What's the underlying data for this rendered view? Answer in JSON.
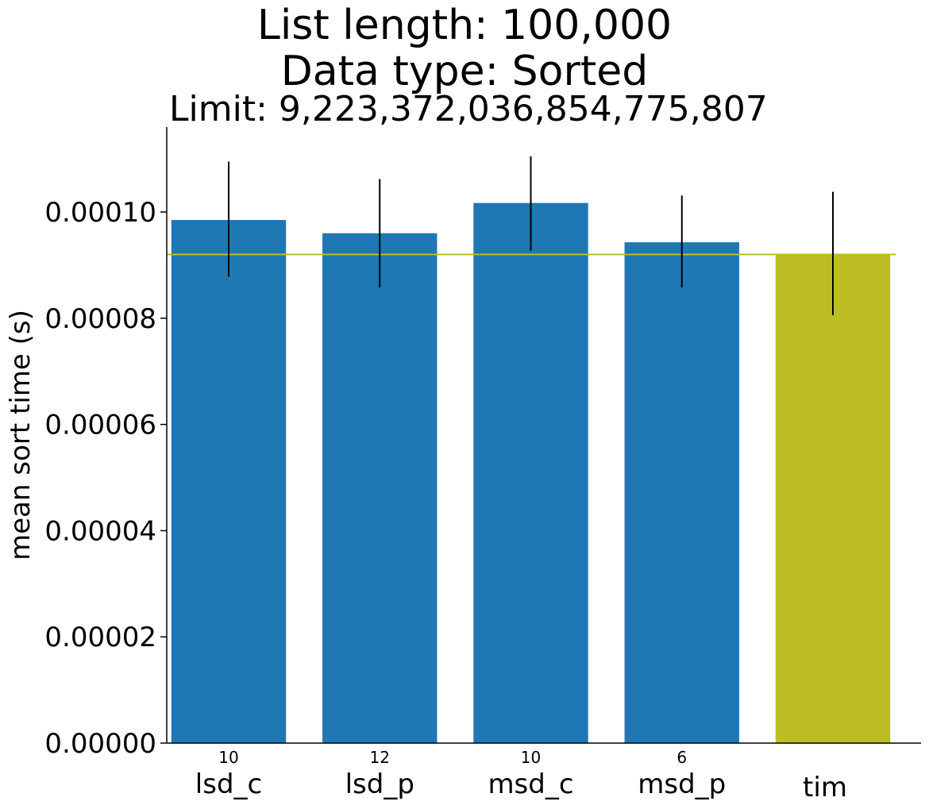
{
  "chart_data": {
    "type": "bar",
    "title_lines": [
      "List length: 100,000",
      "Data type: Sorted"
    ],
    "subtitle": "Limit: 9,223,372,036,854,775,807",
    "ylabel": "mean sort time (s)",
    "xlabel": "",
    "categories": [
      "lsd_c",
      "lsd_p",
      "msd_c",
      "msd_p",
      "tim"
    ],
    "bar_annotations": [
      "10",
      "12",
      "10",
      "6",
      ""
    ],
    "values": [
      9.85e-05,
      9.6e-05,
      0.0001017,
      9.43e-05,
      9.2e-05
    ],
    "error_low": [
      8.78e-05,
      8.58e-05,
      9.27e-05,
      8.58e-05,
      8.06e-05
    ],
    "error_high": [
      0.0001095,
      0.0001062,
      0.0001105,
      0.0001031,
      0.0001038
    ],
    "reference_line": 9.2e-05,
    "ylim": [
      0,
      0.000116
    ],
    "yticks": [
      0,
      2e-05,
      4e-05,
      6e-05,
      8e-05,
      0.0001
    ],
    "ytick_labels": [
      "0.00000",
      "0.00002",
      "0.00004",
      "0.00006",
      "0.00008",
      "0.00010"
    ],
    "bar_colors": [
      "#1f77b4",
      "#1f77b4",
      "#1f77b4",
      "#1f77b4",
      "#bcbd22"
    ],
    "reference_line_color": "#bcbd22",
    "error_bar_color": "#000000",
    "grid": false,
    "legend": "none"
  }
}
